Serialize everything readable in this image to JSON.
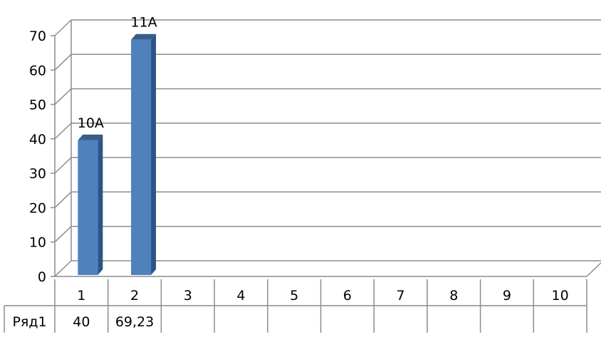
{
  "chart_data": {
    "type": "bar",
    "categories": [
      "1",
      "2",
      "3",
      "4",
      "5",
      "6",
      "7",
      "8",
      "9",
      "10"
    ],
    "series": [
      {
        "name": "Ряд1",
        "values": [
          40,
          69.23,
          null,
          null,
          null,
          null,
          null,
          null,
          null,
          null
        ],
        "value_labels": [
          "40",
          "69,23",
          "",
          "",
          "",
          "",
          "",
          "",
          "",
          ""
        ],
        "data_labels": [
          "10А",
          "11А",
          "",
          "",
          "",
          "",
          "",
          "",
          "",
          ""
        ]
      }
    ],
    "yticks": [
      "0",
      "10",
      "20",
      "30",
      "40",
      "50",
      "60",
      "70"
    ],
    "ylim": [
      0,
      70
    ],
    "grid": true,
    "data_table": true,
    "colors": {
      "bar_front": "#4f81bd",
      "bar_side": "#2c5486",
      "bar_top": "#385d8a",
      "gridline": "#8c8c8c",
      "table_border": "#8c8c8c"
    }
  }
}
